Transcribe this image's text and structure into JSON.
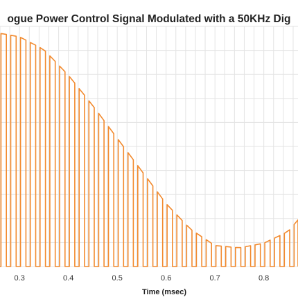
{
  "chart_data": {
    "type": "line",
    "title": "ogue Power Control Signal Modulated with a 50KHz Dig",
    "xlabel": "Time (msec)",
    "ylabel": "",
    "xlim": [
      0.26,
      0.87
    ],
    "ylim": [
      0,
      1.0
    ],
    "grid": true,
    "x_ticks": [
      "0.3",
      "0.4",
      "0.5",
      "0.6",
      "0.7",
      "0.8"
    ],
    "x_tick_values": [
      0.3,
      0.4,
      0.5,
      0.6,
      0.7,
      0.8
    ],
    "pwm_frequency_khz": 50,
    "line_color": "#F28A2E",
    "series": [
      {
        "x": [
          0.26,
          0.3,
          0.35,
          0.4,
          0.45,
          0.5,
          0.55,
          0.6,
          0.65,
          0.7,
          0.75,
          0.8,
          0.85,
          0.87
        ],
        "values": [
          1.0,
          0.985,
          0.93,
          0.82,
          0.69,
          0.55,
          0.41,
          0.27,
          0.16,
          0.09,
          0.08,
          0.1,
          0.15,
          0.2
        ]
      }
    ]
  }
}
